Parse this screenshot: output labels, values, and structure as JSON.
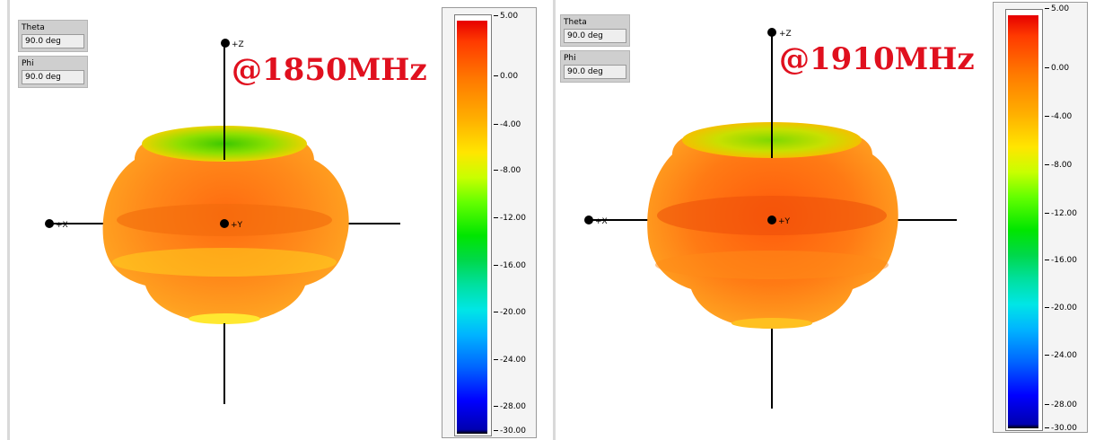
{
  "panels": [
    {
      "theta_label": "Theta",
      "theta_value": "90.0 deg",
      "phi_label": "Phi",
      "phi_value": "90.0 deg",
      "frequency_label": "@1850MHz",
      "axes": {
        "z": "+Z",
        "x": "+X",
        "y": "+Y"
      }
    },
    {
      "theta_label": "Theta",
      "theta_value": "90.0 deg",
      "phi_label": "Phi",
      "phi_value": "90.0 deg",
      "frequency_label": "@1910MHz",
      "axes": {
        "z": "+Z",
        "x": "+X",
        "y": "+Y"
      }
    }
  ],
  "color_scale": {
    "ticks": [
      "5.00",
      "0.00",
      "-4.00",
      "-8.00",
      "-12.00",
      "-16.00",
      "-20.00",
      "-24.00",
      "-28.00",
      "-30.00"
    ],
    "colors": {
      "max": "#e60000",
      "mid": "#00e600",
      "min": "#0000ff"
    }
  }
}
